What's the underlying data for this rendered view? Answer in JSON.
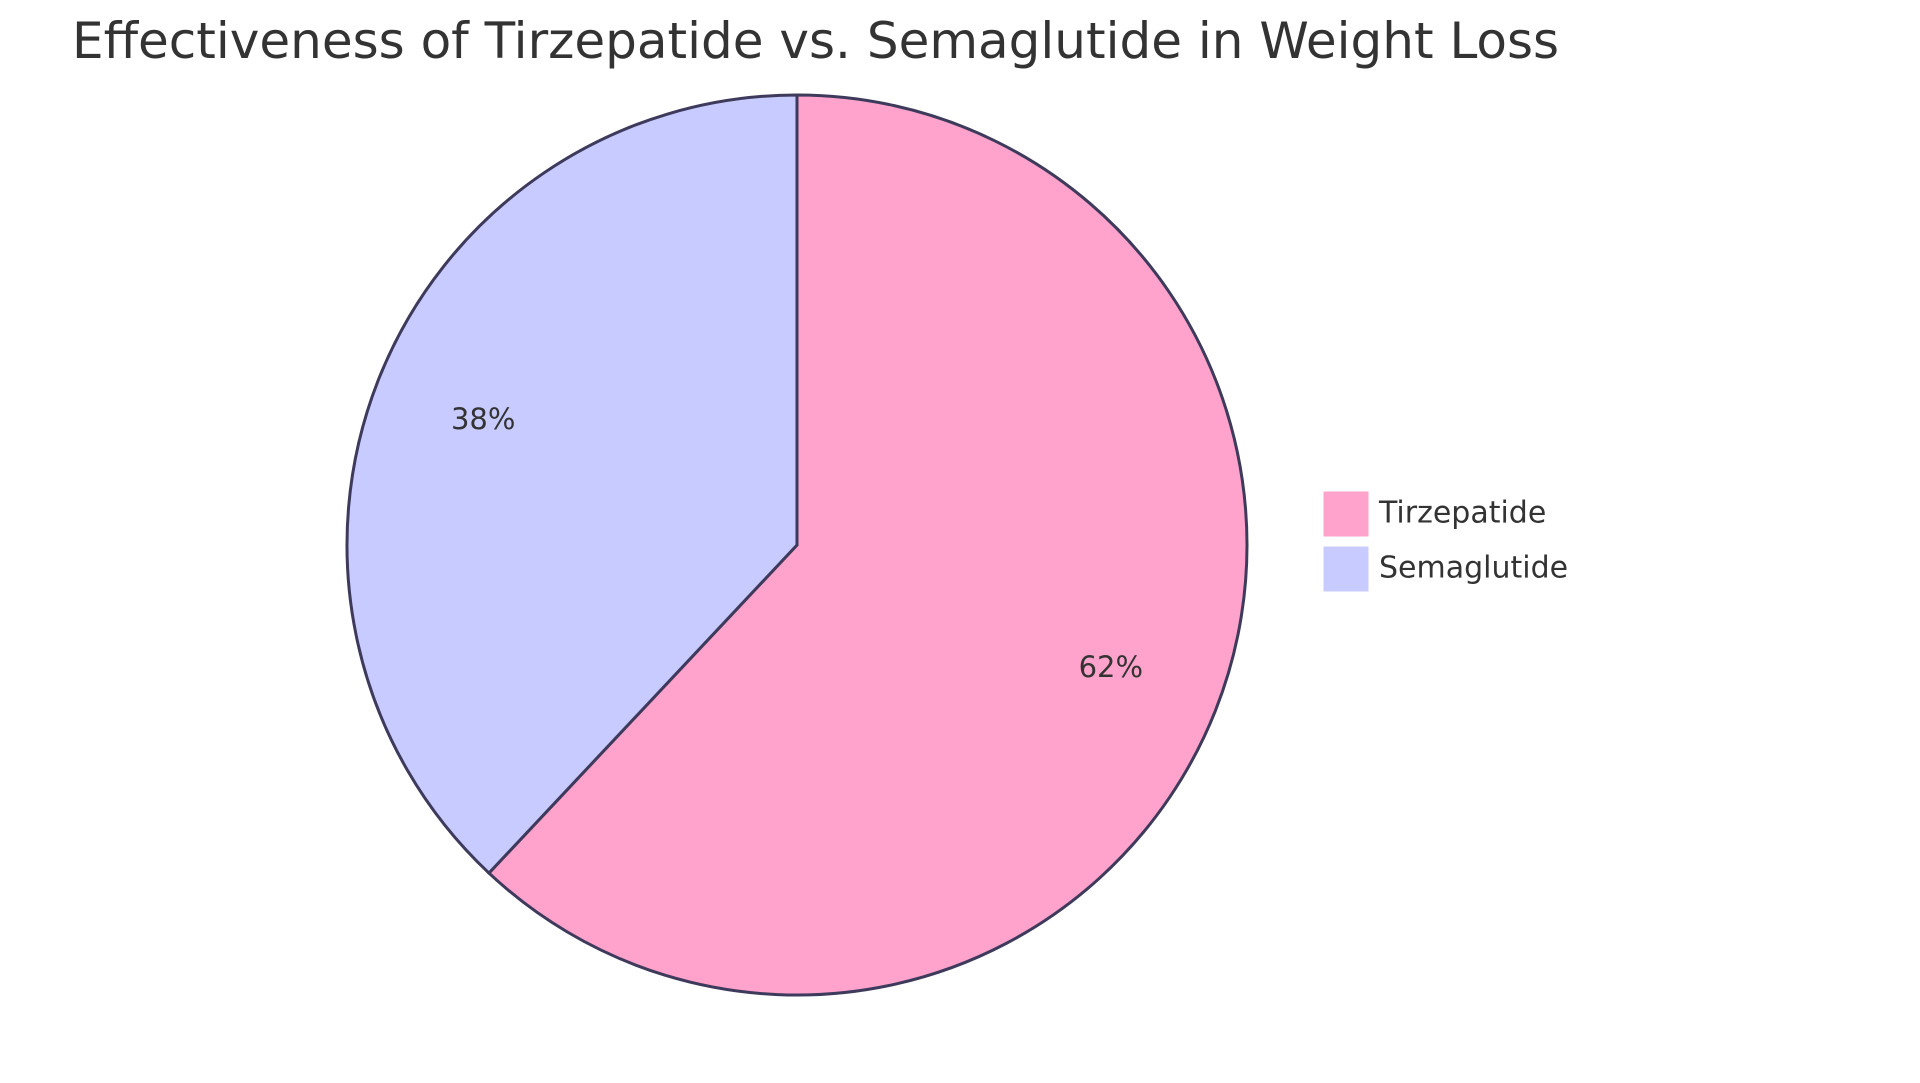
{
  "chart_data": {
    "type": "pie",
    "title": "Effectiveness of Tirzepatide vs. Semaglutide in Weight Loss",
    "slices": [
      {
        "name": "Tirzepatide",
        "value": 62,
        "label": "62%",
        "color": "#FFA3CC"
      },
      {
        "name": "Semaglutide",
        "value": 38,
        "label": "38%",
        "color": "#C8CBFF"
      }
    ],
    "legend": {
      "placement": "right",
      "entries": [
        "Tirzepatide",
        "Semaglutide"
      ]
    },
    "stroke_color": "#3E3A5C"
  }
}
